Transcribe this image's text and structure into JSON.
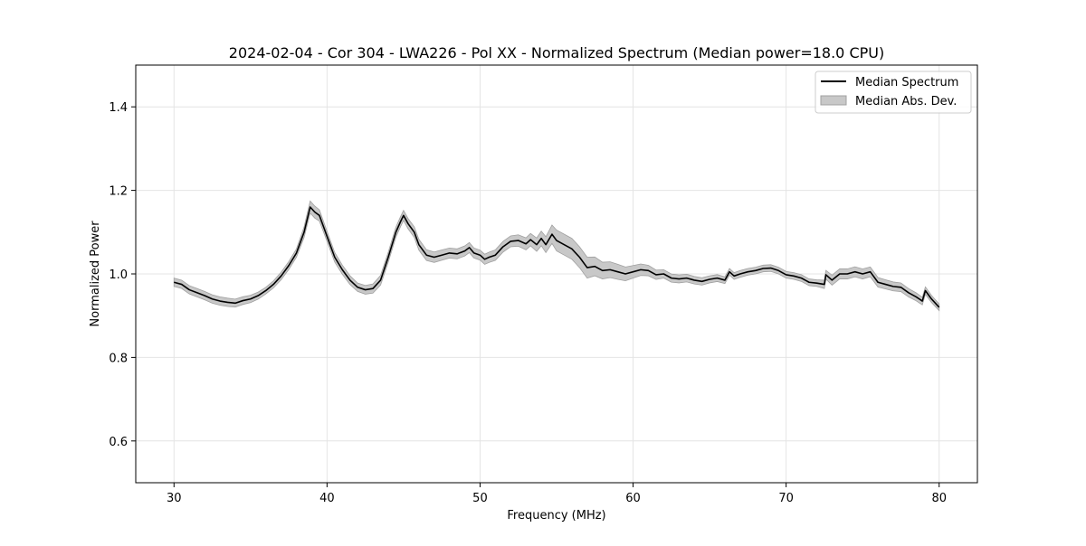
{
  "chart_data": {
    "type": "line",
    "title": "2024-02-04 - Cor 304 - LWA226 - Pol XX - Normalized Spectrum (Median power=18.0 CPU)",
    "xlabel": "Frequency (MHz)",
    "ylabel": "Normalized Power",
    "xlim": [
      27.5,
      82.5
    ],
    "ylim": [
      0.5,
      1.5
    ],
    "xticks": [
      30,
      40,
      50,
      60,
      70,
      80
    ],
    "yticks": [
      0.6,
      0.8,
      1.0,
      1.2,
      1.4
    ],
    "grid": true,
    "legend_position": "top-right",
    "colors": {
      "line": "#000000",
      "band": "#c8c8c8",
      "band_edge": "#a0a0a0",
      "grid": "#e4e4e4"
    },
    "legend": [
      {
        "label": "Median Spectrum",
        "kind": "line"
      },
      {
        "label": "Median Abs. Dev.",
        "kind": "band"
      }
    ],
    "series": [
      {
        "name": "Median Spectrum",
        "x": [
          30.0,
          30.5,
          31.0,
          31.5,
          32.0,
          32.5,
          33.0,
          33.5,
          34.0,
          34.5,
          35.0,
          35.5,
          36.0,
          36.5,
          37.0,
          37.5,
          38.0,
          38.5,
          38.9,
          39.2,
          39.5,
          40.0,
          40.5,
          41.0,
          41.5,
          42.0,
          42.5,
          43.0,
          43.5,
          44.0,
          44.5,
          44.8,
          45.0,
          45.3,
          45.7,
          46.0,
          46.5,
          47.0,
          47.5,
          48.0,
          48.5,
          49.0,
          49.3,
          49.6,
          50.0,
          50.3,
          50.6,
          51.0,
          51.5,
          52.0,
          52.5,
          53.0,
          53.3,
          53.7,
          54.0,
          54.3,
          54.7,
          55.0,
          55.5,
          56.0,
          56.5,
          57.0,
          57.5,
          58.0,
          58.5,
          59.0,
          59.5,
          60.0,
          60.5,
          61.0,
          61.5,
          62.0,
          62.5,
          63.0,
          63.5,
          64.0,
          64.5,
          65.0,
          65.5,
          66.0,
          66.3,
          66.6,
          67.0,
          67.5,
          68.0,
          68.5,
          69.0,
          69.5,
          70.0,
          70.5,
          71.0,
          71.5,
          72.0,
          72.5,
          72.6,
          73.0,
          73.5,
          74.0,
          74.5,
          75.0,
          75.5,
          76.0,
          76.5,
          77.0,
          77.5,
          78.0,
          78.5,
          78.9,
          79.1,
          79.5,
          80.0
        ],
        "values": [
          0.98,
          0.975,
          0.962,
          0.955,
          0.948,
          0.94,
          0.935,
          0.932,
          0.93,
          0.936,
          0.94,
          0.948,
          0.96,
          0.975,
          0.995,
          1.02,
          1.05,
          1.1,
          1.16,
          1.148,
          1.14,
          1.09,
          1.04,
          1.01,
          0.985,
          0.968,
          0.962,
          0.965,
          0.985,
          1.04,
          1.1,
          1.125,
          1.14,
          1.12,
          1.1,
          1.07,
          1.045,
          1.04,
          1.045,
          1.05,
          1.048,
          1.055,
          1.063,
          1.05,
          1.045,
          1.035,
          1.04,
          1.045,
          1.065,
          1.078,
          1.08,
          1.072,
          1.082,
          1.07,
          1.085,
          1.07,
          1.095,
          1.08,
          1.07,
          1.06,
          1.04,
          1.015,
          1.018,
          1.008,
          1.01,
          1.005,
          1.0,
          1.005,
          1.01,
          1.008,
          0.998,
          1.0,
          0.99,
          0.988,
          0.99,
          0.985,
          0.982,
          0.987,
          0.99,
          0.985,
          1.005,
          0.995,
          1.0,
          1.005,
          1.008,
          1.013,
          1.014,
          1.008,
          0.998,
          0.995,
          0.99,
          0.98,
          0.978,
          0.975,
          0.998,
          0.985,
          1.0,
          1.0,
          1.005,
          1.0,
          1.005,
          0.98,
          0.975,
          0.97,
          0.968,
          0.955,
          0.945,
          0.935,
          0.96,
          0.94,
          0.92
        ]
      }
    ],
    "band": {
      "name": "Median Abs. Dev.",
      "x": [
        30,
        32,
        33.5,
        36,
        38,
        39,
        40,
        42,
        44,
        45,
        46,
        48,
        50,
        52,
        53.5,
        54.5,
        55,
        56,
        57,
        58,
        59,
        60,
        62,
        66,
        70,
        72,
        73,
        75,
        78,
        80
      ],
      "delta": [
        0.01,
        0.01,
        0.01,
        0.008,
        0.01,
        0.015,
        0.012,
        0.01,
        0.012,
        0.012,
        0.013,
        0.012,
        0.012,
        0.013,
        0.015,
        0.02,
        0.025,
        0.025,
        0.025,
        0.02,
        0.018,
        0.015,
        0.01,
        0.008,
        0.008,
        0.008,
        0.012,
        0.012,
        0.01,
        0.008
      ]
    }
  }
}
